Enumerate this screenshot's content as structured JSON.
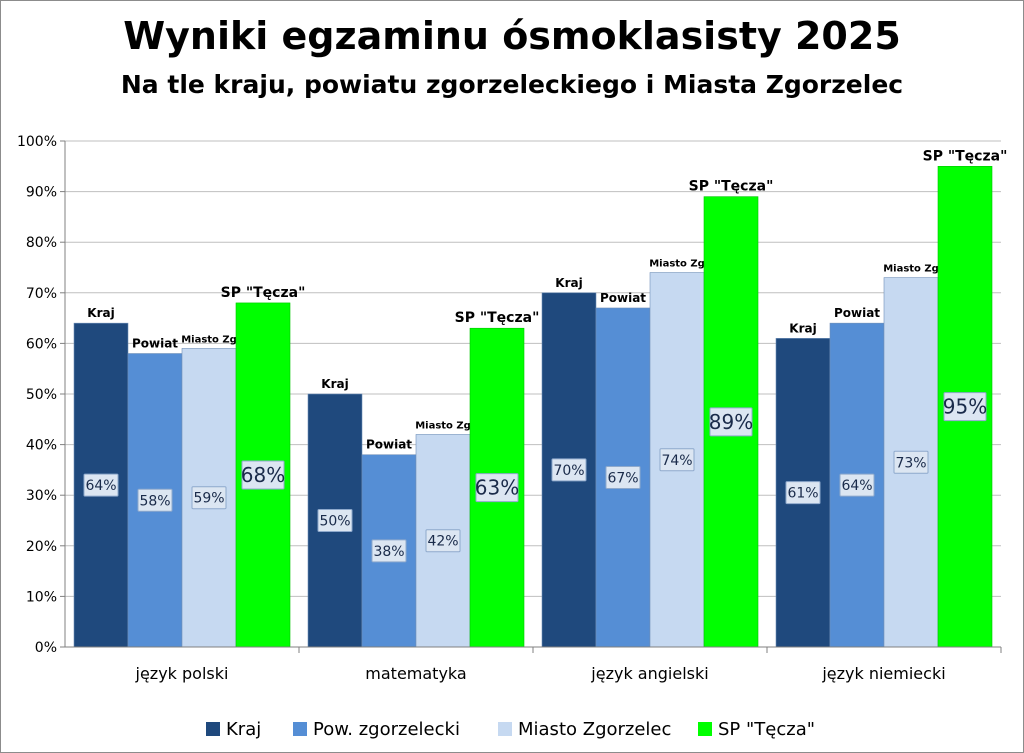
{
  "chart_data": {
    "type": "bar",
    "title": "Wyniki egzaminu ósmoklasisty 2025",
    "subtitle": "Na tle kraju, powiatu zgorzeleckiego i Miasta Zgorzelec",
    "categories": [
      "język polski",
      "matematyka",
      "język angielski",
      "język niemiecki"
    ],
    "series": [
      {
        "name": "Kraj",
        "bar_label": "Kraj",
        "values": [
          64,
          50,
          70,
          61
        ],
        "color": "#1f497d"
      },
      {
        "name": "Pow. zgorzelecki",
        "bar_label": "Powiat",
        "values": [
          58,
          38,
          67,
          64
        ],
        "color": "#558ed5"
      },
      {
        "name": "Miasto Zgorzelec",
        "bar_label": "Miasto Zg",
        "values": [
          59,
          42,
          74,
          73
        ],
        "color": "#c6d9f1"
      },
      {
        "name": "SP \"Tęcza\"",
        "bar_label": "SP \"Tęcza\"",
        "values": [
          68,
          63,
          89,
          95
        ],
        "color": "#00ff00"
      }
    ],
    "data_labels": [
      [
        "64%",
        "58%",
        "59%",
        "68%"
      ],
      [
        "50%",
        "38%",
        "42%",
        "63%"
      ],
      [
        "70%",
        "67%",
        "74%",
        "89%"
      ],
      [
        "61%",
        "64%",
        "73%",
        "95%"
      ]
    ],
    "yticks": [
      "0%",
      "10%",
      "20%",
      "30%",
      "40%",
      "50%",
      "60%",
      "70%",
      "80%",
      "90%",
      "100%"
    ],
    "ylim": [
      0,
      100
    ],
    "y_unit": "%",
    "grid": true,
    "legend_position": "bottom"
  }
}
